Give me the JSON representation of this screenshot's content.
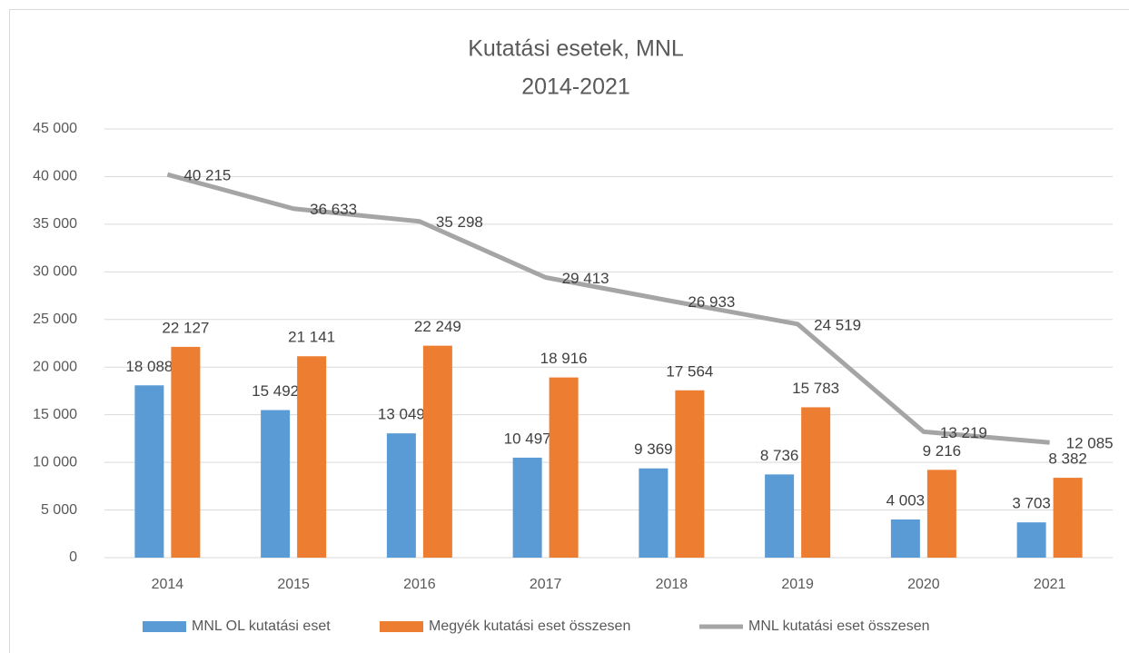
{
  "chart_data": {
    "type": "combo",
    "title": "Kutatási esetek, MNL",
    "subtitle": "2014-2021",
    "categories": [
      "2014",
      "2015",
      "2016",
      "2017",
      "2018",
      "2019",
      "2020",
      "2021"
    ],
    "series": [
      {
        "name": "MNL OL kutatási eset",
        "type": "bar",
        "color": "#5b9bd5",
        "values": [
          18088,
          15492,
          13049,
          10497,
          9369,
          8736,
          4003,
          3703
        ],
        "value_labels": [
          "18 088",
          "15 492",
          "13 049",
          "10 497",
          "9 369",
          "8 736",
          "4 003",
          "3 703"
        ]
      },
      {
        "name": "Megyék kutatási eset összesen",
        "type": "bar",
        "color": "#ed7d31",
        "values": [
          22127,
          21141,
          22249,
          18916,
          17564,
          15783,
          9216,
          8382
        ],
        "value_labels": [
          "22 127",
          "21 141",
          "22 249",
          "18 916",
          "17 564",
          "15 783",
          "9 216",
          "8 382"
        ]
      },
      {
        "name": "MNL kutatási eset összesen",
        "type": "line",
        "color": "#a5a5a5",
        "values": [
          40215,
          36633,
          35298,
          29413,
          26933,
          24519,
          13219,
          12085
        ],
        "value_labels": [
          "40 215",
          "36 633",
          "35 298",
          "29 413",
          "26 933",
          "24 519",
          "13 219",
          "12 085"
        ]
      }
    ],
    "ylim": [
      0,
      45000
    ],
    "yticks": [
      0,
      {
        "value": 5000,
        "label": "5 000"
      },
      {
        "value": 10000,
        "label": "10 000"
      },
      {
        "value": 15000,
        "label": "15 000"
      },
      {
        "value": 20000,
        "label": "20 000"
      },
      {
        "value": 25000,
        "label": "25 000"
      },
      {
        "value": 30000,
        "label": "30 000"
      },
      {
        "value": 35000,
        "label": "35 000"
      },
      {
        "value": 40000,
        "label": "40 000"
      },
      {
        "value": 45000,
        "label": "45 000"
      }
    ],
    "grid": true,
    "legend": "bottom"
  }
}
